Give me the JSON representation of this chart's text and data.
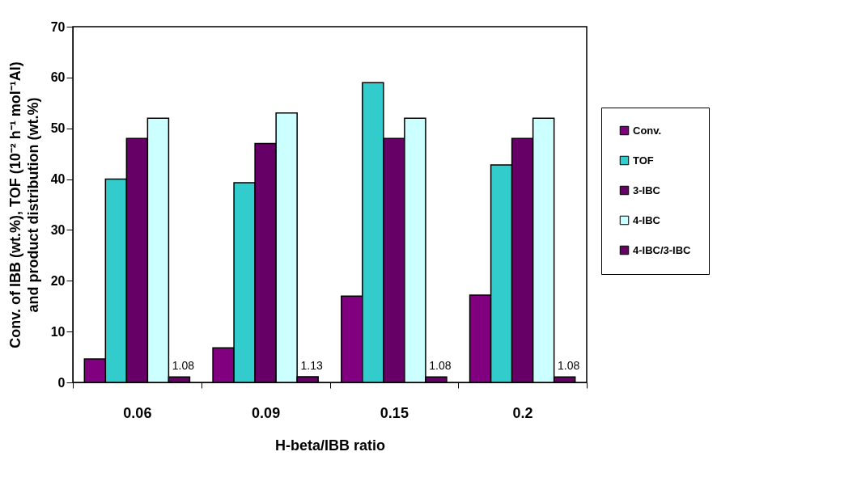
{
  "chart_data": {
    "type": "bar",
    "xlabel": "H-beta/IBB ratio",
    "ylabel": "Conv. of IBB (wt.%), TOF (10⁻² h⁻¹ mol⁻¹Al)\nand product distribution (wt.%)",
    "categories": [
      "0.06",
      "0.09",
      "0.15",
      "0.2"
    ],
    "series": [
      {
        "name": "Conv.",
        "color": "#800080",
        "values": [
          4.6,
          6.8,
          17,
          17.2
        ]
      },
      {
        "name": "TOF",
        "color": "#33cccc",
        "values": [
          40,
          39.3,
          59,
          42.8
        ]
      },
      {
        "name": "3-IBC",
        "color": "#660066",
        "values": [
          48,
          47,
          48,
          48
        ]
      },
      {
        "name": "4-IBC",
        "color": "#ccffff",
        "values": [
          52,
          53,
          52,
          52
        ]
      },
      {
        "name": "4-IBC/3-IBC",
        "color": "#660066",
        "values": [
          1.08,
          1.13,
          1.08,
          1.08
        ],
        "value_labels": [
          "1.08",
          "1.13",
          "1.08",
          "1.08"
        ]
      }
    ],
    "ylim": [
      0,
      70
    ],
    "yticks": [
      0,
      10,
      20,
      30,
      40,
      50,
      60,
      70
    ],
    "grid": false,
    "legend": "right"
  }
}
